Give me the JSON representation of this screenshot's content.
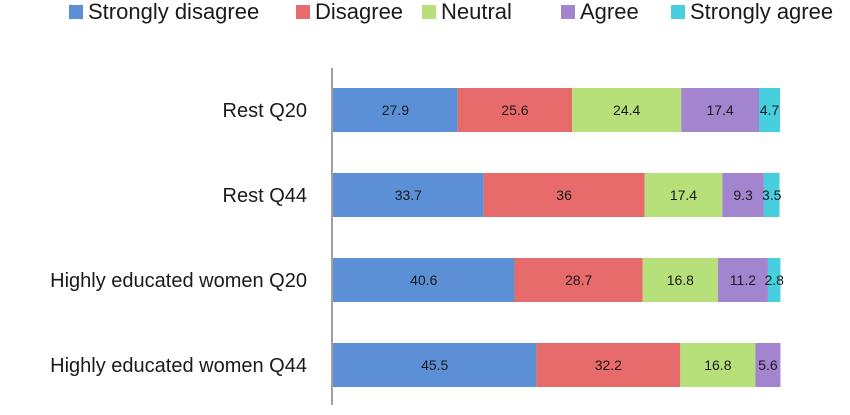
{
  "chart_data": {
    "type": "bar",
    "orientation": "horizontal",
    "stacked": true,
    "categories": [
      "Rest Q20",
      "Rest Q44",
      "Highly educated women Q20",
      "Highly educated women Q44"
    ],
    "series": [
      {
        "name": "Strongly disagree",
        "color": "#5b8fd6",
        "values": [
          27.9,
          33.7,
          40.6,
          45.5
        ]
      },
      {
        "name": "Disagree",
        "color": "#e86b6b",
        "values": [
          25.6,
          36,
          28.7,
          32.2
        ]
      },
      {
        "name": "Neutral",
        "color": "#b8e07a",
        "values": [
          24.4,
          17.4,
          16.8,
          16.8
        ]
      },
      {
        "name": "Agree",
        "color": "#a385cf",
        "values": [
          17.4,
          9.3,
          11.2,
          5.6
        ]
      },
      {
        "name": "Strongly agree",
        "color": "#47cfe0",
        "values": [
          4.7,
          3.5,
          2.8,
          null
        ]
      }
    ],
    "value_labels": [
      [
        "27.9",
        "25.6",
        "24.4",
        "17.4",
        "4.7"
      ],
      [
        "33.7",
        "36",
        "17.4",
        "9.3",
        "3.5"
      ],
      [
        "40.6",
        "28.7",
        "16.8",
        "11.2",
        "2.8"
      ],
      [
        "45.5",
        "32.2",
        "16.8",
        "5.6",
        ""
      ]
    ],
    "xlim": [
      0,
      100
    ],
    "legend_position": "top",
    "grid": false
  }
}
